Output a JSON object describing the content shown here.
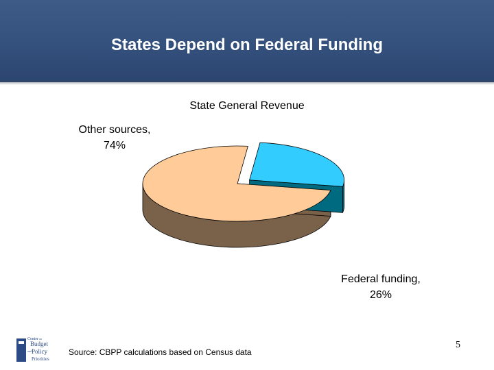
{
  "slide": {
    "title": "States Depend on Federal Funding",
    "source": "Source: CBPP calculations based on Census data",
    "page_number": "5",
    "logo_text": [
      "Center",
      "on",
      "Budget",
      "and",
      "Policy",
      "Priorities"
    ]
  },
  "labels": {
    "other_name": "Other sources,",
    "other_pct": "74%",
    "federal_name": "Federal funding,",
    "federal_pct": "26%"
  },
  "chart_data": {
    "type": "pie",
    "title": "State General Revenue",
    "slices": [
      {
        "label": "Other sources",
        "value": 74,
        "top_color": "#ffcc99",
        "side_color": "#7a614a"
      },
      {
        "label": "Federal funding",
        "value": 26,
        "top_color": "#33ccff",
        "side_color": "#006b80",
        "exploded": true
      }
    ],
    "three_d": true
  },
  "colors": {
    "header": "#34507c",
    "logo": "#2b4a86"
  }
}
